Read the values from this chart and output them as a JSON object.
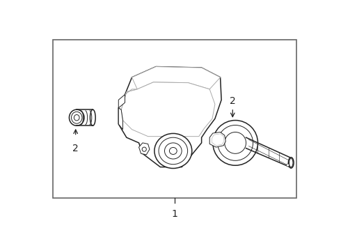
{
  "background_color": "#ffffff",
  "border_color": "#666666",
  "border_linewidth": 1.2,
  "label1_text": "1",
  "label2_text": "2",
  "line_color": "#222222",
  "light_line_color": "#aaaaaa",
  "fig_w": 4.9,
  "fig_h": 3.6,
  "dpi": 100
}
